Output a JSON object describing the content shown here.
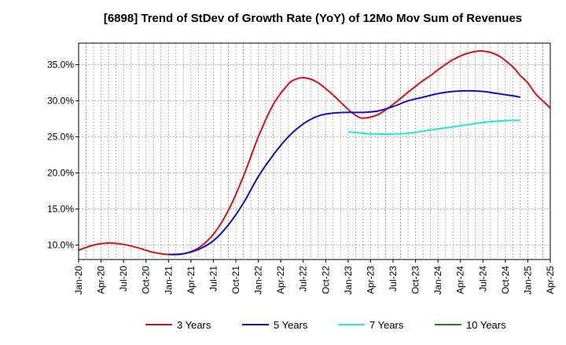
{
  "chart_data": {
    "type": "line",
    "title": "[6898]  Trend of StDev of Growth Rate (YoY) of 12Mo Mov Sum of Revenues",
    "xlabel": "",
    "ylabel": "",
    "x_ticks": [
      "Jan-20",
      "Apr-20",
      "Jul-20",
      "Oct-20",
      "Jan-21",
      "Apr-21",
      "Jul-21",
      "Oct-21",
      "Jan-22",
      "Apr-22",
      "Jul-22",
      "Oct-22",
      "Jan-23",
      "Apr-23",
      "Jul-23",
      "Oct-23",
      "Jan-24",
      "Apr-24",
      "Jul-24",
      "Oct-24",
      "Jan-25",
      "Apr-25"
    ],
    "y_ticks": [
      "10.0%",
      "15.0%",
      "20.0%",
      "25.0%",
      "30.0%",
      "35.0%"
    ],
    "y_tick_values": [
      10,
      15,
      20,
      25,
      30,
      35
    ],
    "xlim": [
      0,
      63
    ],
    "ylim": [
      8,
      38
    ],
    "grid": true,
    "legend_position": "bottom",
    "series": [
      {
        "name": "3 Years",
        "color": "#dd1111",
        "x": [
          0,
          2,
          4,
          6,
          8,
          10,
          12,
          14,
          16,
          18,
          20,
          22,
          24,
          26,
          28,
          29,
          30,
          31,
          32,
          33,
          34,
          35,
          36,
          37,
          38,
          40,
          42,
          44,
          45,
          46,
          47,
          48,
          50,
          52,
          54,
          56,
          58,
          59,
          60,
          61,
          62,
          63
        ],
        "y": [
          9.3,
          10.0,
          10.3,
          10.1,
          9.6,
          9.0,
          8.7,
          8.8,
          9.6,
          11.5,
          14.8,
          19.5,
          25.0,
          29.5,
          32.3,
          33.0,
          33.2,
          33.0,
          32.5,
          31.7,
          30.8,
          29.8,
          28.8,
          28.0,
          27.6,
          28.1,
          29.5,
          31.2,
          32.0,
          32.8,
          33.5,
          34.3,
          35.7,
          36.6,
          36.9,
          36.3,
          34.7,
          33.5,
          32.5,
          31.0,
          30.0,
          29.0
        ]
      },
      {
        "name": "5 Years",
        "color": "#1010cc",
        "x": [
          12,
          14,
          16,
          18,
          20,
          22,
          24,
          26,
          28,
          30,
          32,
          34,
          36,
          38,
          40,
          42,
          44,
          46,
          48,
          50,
          52,
          54,
          56,
          58,
          59
        ],
        "y": [
          8.7,
          8.8,
          9.4,
          10.6,
          12.8,
          15.8,
          19.5,
          22.5,
          25.0,
          26.8,
          27.9,
          28.3,
          28.4,
          28.4,
          28.6,
          29.2,
          30.0,
          30.5,
          31.0,
          31.3,
          31.4,
          31.3,
          31.0,
          30.7,
          30.5
        ]
      },
      {
        "name": "7 Years",
        "color": "#22e5e8",
        "x": [
          36,
          38,
          40,
          42,
          44,
          46,
          48,
          50,
          52,
          54,
          56,
          58,
          59
        ],
        "y": [
          25.7,
          25.5,
          25.4,
          25.4,
          25.5,
          25.8,
          26.1,
          26.4,
          26.7,
          27.0,
          27.2,
          27.3,
          27.3
        ]
      },
      {
        "name": "10 Years",
        "color": "#1a8a1a",
        "x": [],
        "y": []
      }
    ]
  }
}
